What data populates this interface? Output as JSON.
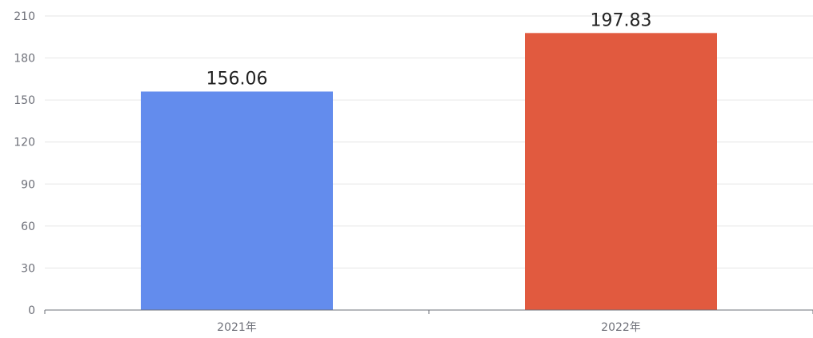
{
  "chart_data": {
    "type": "bar",
    "categories": [
      "2021年",
      "2022年"
    ],
    "values": [
      156.06,
      197.83
    ],
    "data_labels": [
      "156.06",
      "197.83"
    ],
    "bar_colors": [
      "#638ced",
      "#e15a3f"
    ],
    "y_ticks": [
      "0",
      "30",
      "60",
      "90",
      "120",
      "150",
      "180",
      "210"
    ],
    "ylim": [
      0,
      210
    ],
    "grid": true,
    "title": "",
    "xlabel": "",
    "ylabel": ""
  }
}
